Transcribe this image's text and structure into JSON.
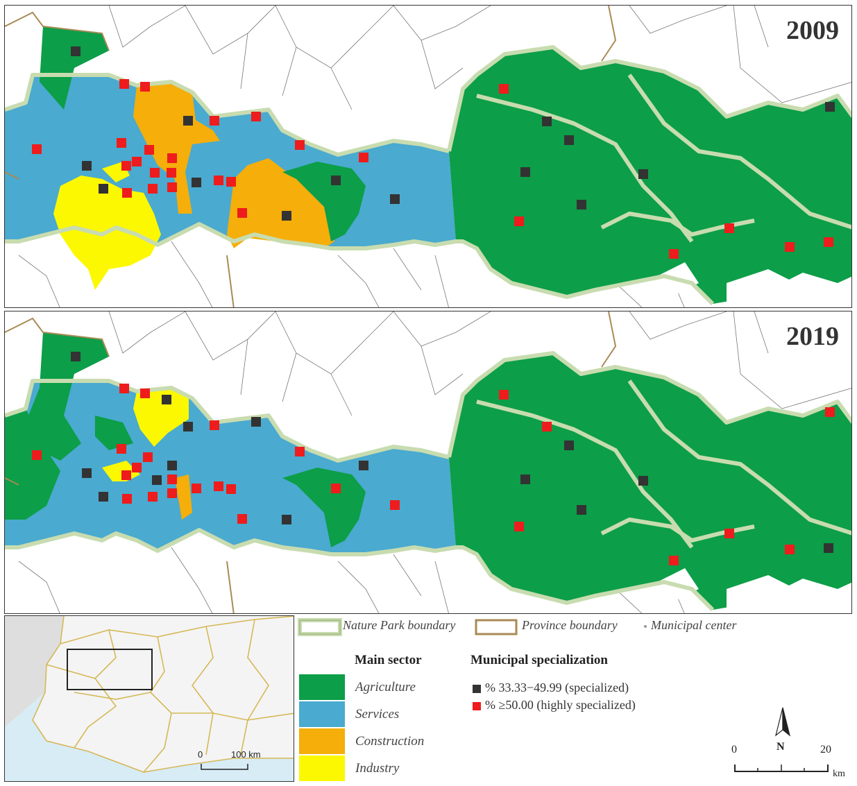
{
  "panels": [
    {
      "year": "2009"
    },
    {
      "year": "2019"
    }
  ],
  "legend": {
    "nature_park_boundary": "Nature Park boundary",
    "province_boundary": "Province boundary",
    "municipal_center": "Municipal center",
    "main_sector_title": "Main sector",
    "specialization_title": "Municipal specialization",
    "sectors": [
      {
        "label": "Agriculture",
        "color": "#0c9e48"
      },
      {
        "label": "Services",
        "color": "#4aaacf"
      },
      {
        "label": "Construction",
        "color": "#f5ae0a"
      },
      {
        "label": "Industry",
        "color": "#fbf801"
      }
    ],
    "specialization": [
      {
        "label": "% 33.33−49.99 (specialized)",
        "color": "#333333"
      },
      {
        "label": "% ≥50.00 (highly specialized)",
        "color": "#ee1c1c"
      }
    ]
  },
  "scale": {
    "zero": "0",
    "twenty": "20",
    "unit": "km",
    "north": "N"
  },
  "inset": {
    "scale_zero": "0",
    "scale_label": "100 km"
  },
  "colors": {
    "agriculture": "#0c9e48",
    "services": "#4aaacf",
    "construction": "#f5ae0a",
    "industry": "#fbf801",
    "specialized": "#333333",
    "highly_specialized": "#ee1c1c",
    "park_boundary": "#c8dcb0",
    "province_boundary": "#a98a55"
  }
}
